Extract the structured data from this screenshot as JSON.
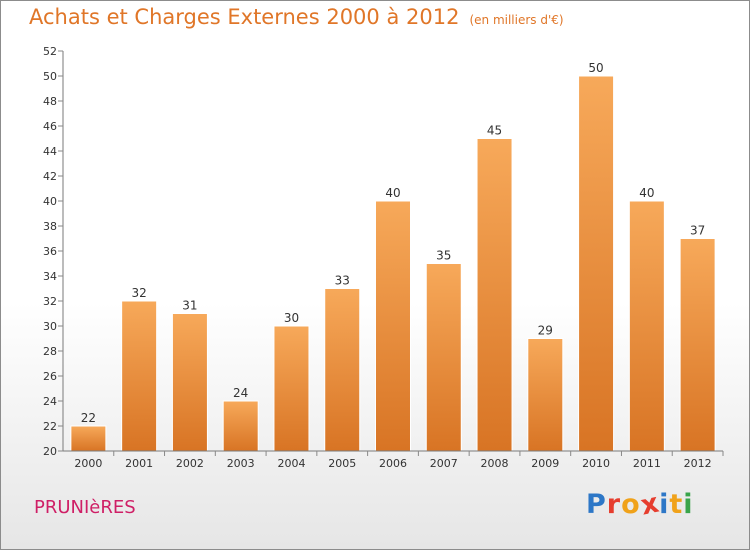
{
  "colors": {
    "title": "#e07628",
    "commune": "#cf1f66",
    "bar_light": "#f7a95a",
    "bar_dark": "#d87424",
    "axis": "#7a7a7a",
    "grid_tick": "#888888",
    "logo": [
      "#2d77c7",
      "#e63d2e",
      "#f0a21a",
      "#e63d2e",
      "#2d77c7",
      "#f0a21a",
      "#3aa54a"
    ]
  },
  "header": {
    "title": "Achats et Charges Externes 2000 à 2012",
    "subtitle": "(en milliers d'€)"
  },
  "footer": {
    "commune": "PRUNIèRES",
    "logo_letters": [
      "P",
      "r",
      "o",
      "x",
      "i",
      "t",
      "i"
    ]
  },
  "chart_data": {
    "type": "bar",
    "categories": [
      "2000",
      "2001",
      "2002",
      "2003",
      "2004",
      "2005",
      "2006",
      "2007",
      "2008",
      "2009",
      "2010",
      "2011",
      "2012"
    ],
    "values": [
      22,
      32,
      31,
      24,
      30,
      33,
      40,
      35,
      45,
      29,
      50,
      40,
      37
    ],
    "title": "Achats et Charges Externes 2000 à 2012",
    "subtitle": "(en milliers d'€)",
    "xlabel": "",
    "ylabel": "",
    "ylim": [
      20,
      52
    ],
    "yticks": [
      20,
      22,
      24,
      26,
      28,
      30,
      32,
      34,
      36,
      38,
      40,
      42,
      44,
      46,
      48,
      50,
      52
    ],
    "grid": false,
    "data_labels": true
  }
}
